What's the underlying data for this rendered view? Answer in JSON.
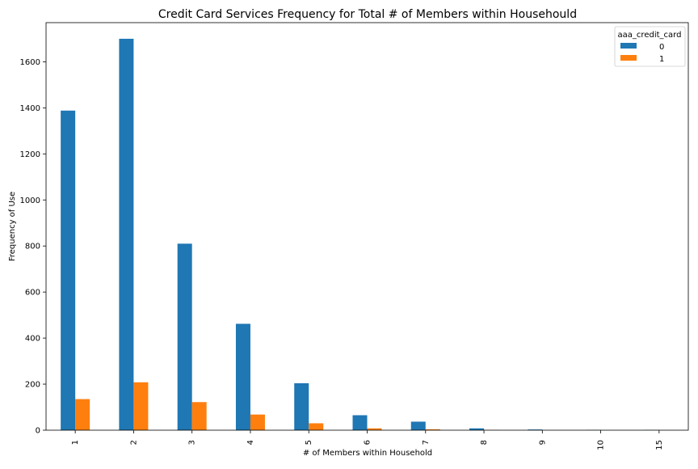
{
  "chart_data": {
    "type": "bar",
    "title": "Credit Card Services Frequency for Total # of Members within Househould",
    "xlabel": "# of Members within Household",
    "ylabel": "Frequency of Use",
    "categories": [
      "1",
      "2",
      "3",
      "4",
      "5",
      "6",
      "7",
      "8",
      "9",
      "10",
      "15"
    ],
    "series": [
      {
        "name": "0",
        "color": "#1f77b4",
        "values": [
          1388,
          1700,
          810,
          462,
          204,
          65,
          37,
          8,
          3,
          1,
          1
        ]
      },
      {
        "name": "1",
        "color": "#ff7f0e",
        "values": [
          135,
          208,
          122,
          68,
          30,
          8,
          4,
          1,
          0,
          0,
          0
        ]
      }
    ],
    "ylim": [
      0,
      1770
    ],
    "yticks": [
      0,
      200,
      400,
      600,
      800,
      1000,
      1200,
      1400,
      1600
    ],
    "legend": {
      "title": "aaa_credit_card",
      "placement": "top-right"
    },
    "grid": false
  }
}
